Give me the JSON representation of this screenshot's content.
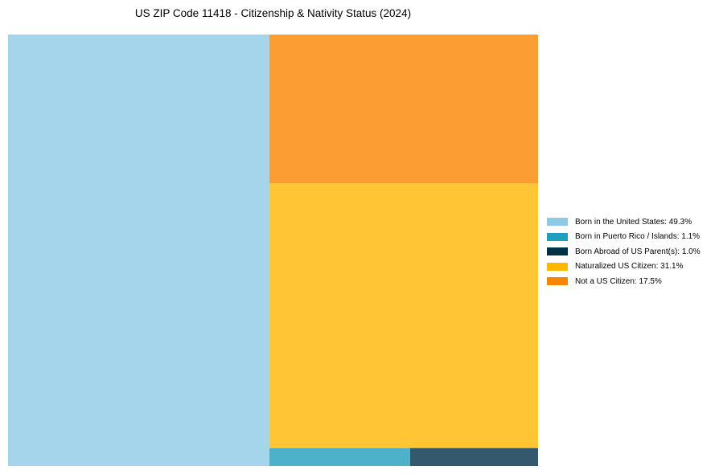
{
  "chart_data": {
    "type": "treemap",
    "title": "US ZIP Code 11418 - Citizenship & Nativity Status (2024)",
    "items": [
      {
        "label": "Born in the United States",
        "value": 49.3,
        "color": "#8ecae6",
        "legend": "Born in the United States: 49.3%"
      },
      {
        "label": "Born in Puerto Rico / Islands",
        "value": 1.1,
        "color": "#219ebc",
        "legend": "Born in Puerto Rico / Islands: 1.1%"
      },
      {
        "label": "Born Abroad of US Parent(s)",
        "value": 1.0,
        "color": "#023047",
        "legend": "Born Abroad of US Parent(s): 1.0%"
      },
      {
        "label": "Naturalized US Citizen",
        "value": 31.1,
        "color": "#ffb703",
        "legend": "Naturalized US Citizen: 31.1%"
      },
      {
        "label": "Not a US Citizen",
        "value": 17.5,
        "color": "#fb8500",
        "legend": "Not a US Citizen: 17.5%"
      }
    ],
    "legend_position": "right"
  }
}
